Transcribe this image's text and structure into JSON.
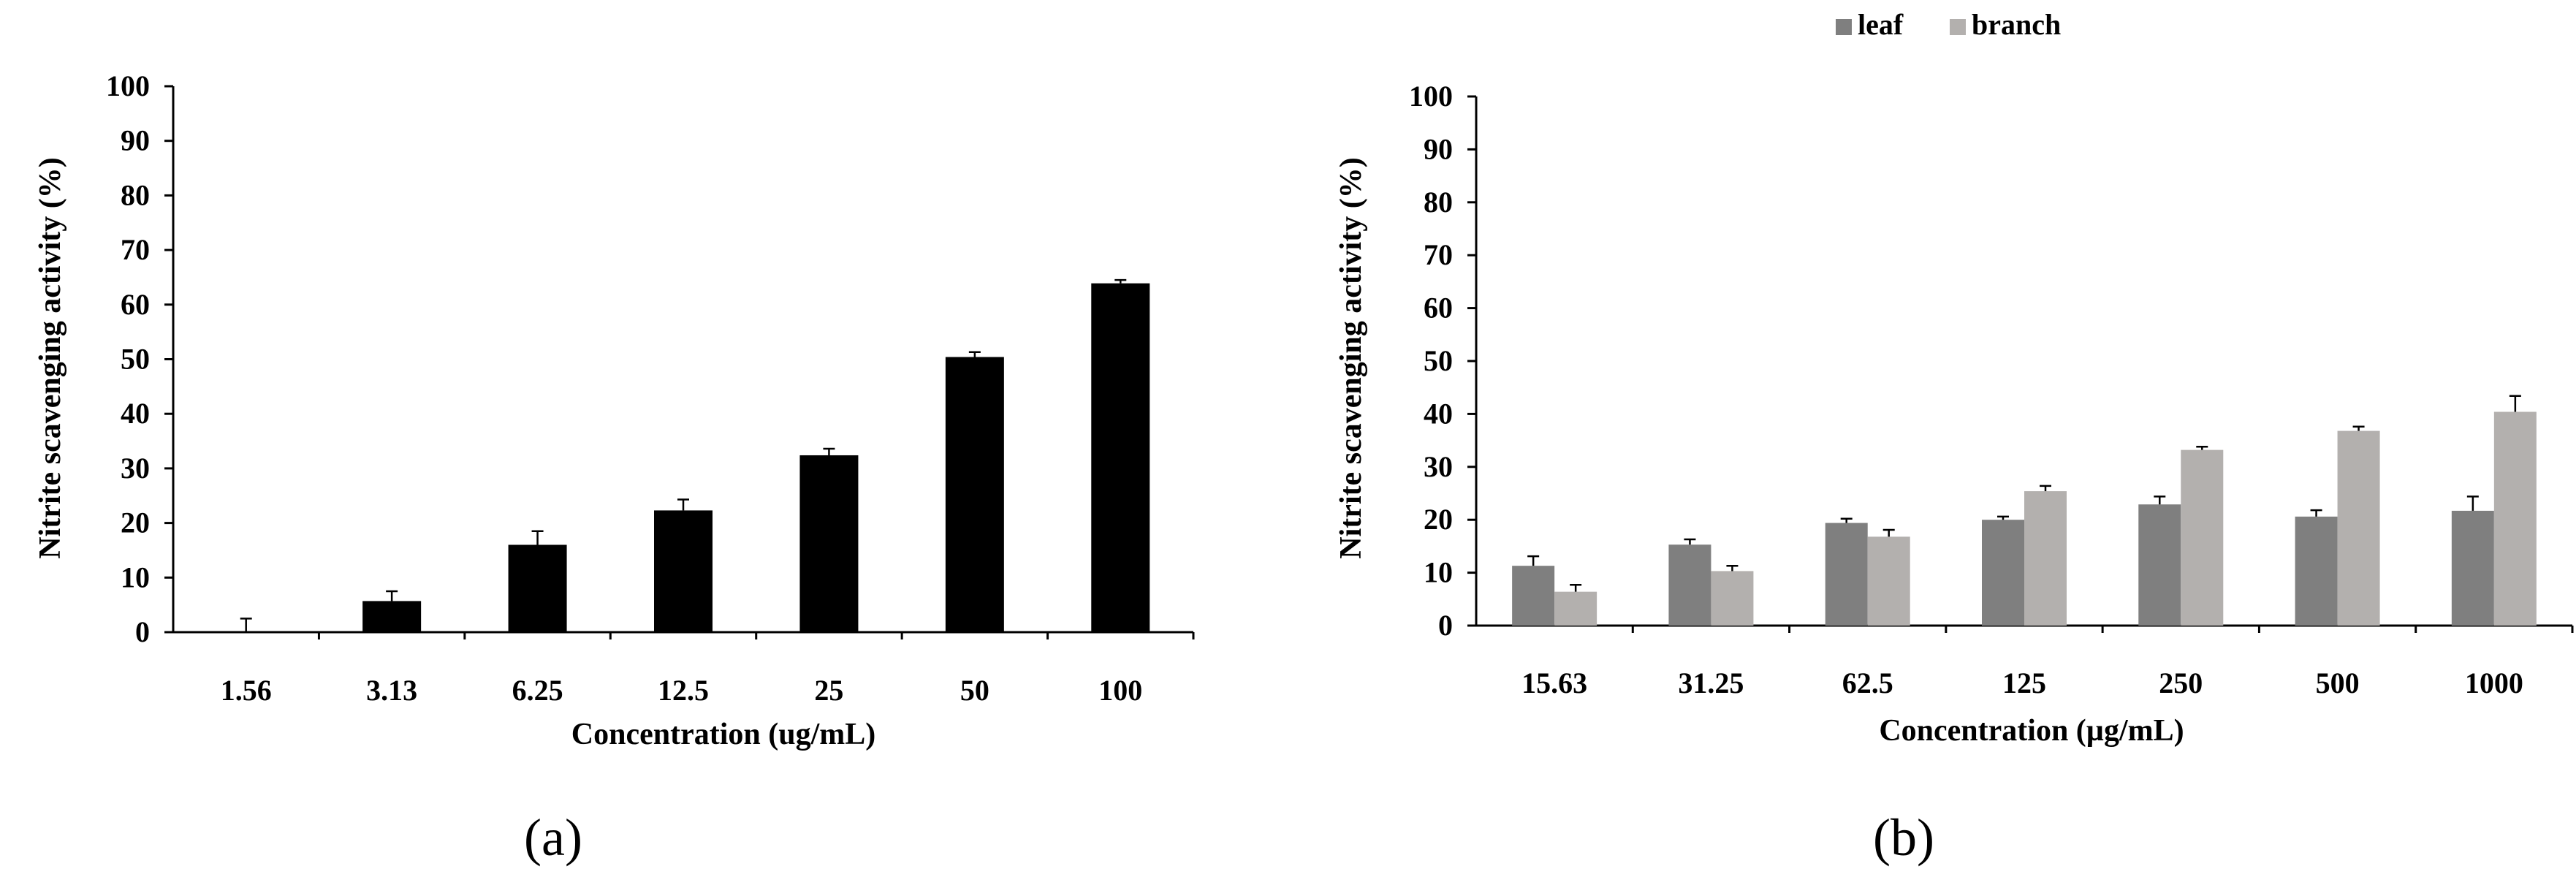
{
  "chart_data": [
    {
      "type": "bar",
      "panel_label": "(a)",
      "title": "",
      "xlabel": "Concentration (ug/mL)",
      "ylabel": "Nitrite scavenging activity (%)",
      "ylim": [
        0,
        100
      ],
      "yticks": [
        "0",
        "10",
        "20",
        "30",
        "40",
        "50",
        "60",
        "70",
        "80",
        "90",
        "100"
      ],
      "grid": false,
      "categories": [
        "1.56",
        "3.13",
        "6.25",
        "12.5",
        "25",
        "50",
        "100"
      ],
      "series": [
        {
          "color": "#000000",
          "values": [
            0,
            5.7,
            16.0,
            22.3,
            32.4,
            50.4,
            63.9
          ],
          "errors": [
            2.5,
            1.8,
            2.5,
            2.0,
            1.2,
            0.9,
            0.6
          ]
        }
      ]
    },
    {
      "type": "bar",
      "panel_label": "(b)",
      "title": "",
      "xlabel": "Concentration (µg/mL)",
      "ylabel": "Nitrite scavenging activity (%)",
      "ylim": [
        0,
        100
      ],
      "yticks": [
        "0",
        "10",
        "20",
        "30",
        "40",
        "50",
        "60",
        "70",
        "80",
        "90",
        "100"
      ],
      "grid": false,
      "legend_position": "top",
      "categories": [
        "15.63",
        "31.25",
        "62.5",
        "125",
        "250",
        "500",
        "1000"
      ],
      "series": [
        {
          "name": "leaf",
          "color": "#7f7f7f",
          "values": [
            11.3,
            15.3,
            19.4,
            20.0,
            22.9,
            20.6,
            21.7
          ],
          "errors": [
            1.8,
            1.0,
            0.8,
            0.6,
            1.5,
            1.2,
            2.7
          ]
        },
        {
          "name": "branch",
          "color": "#b3b0ae",
          "values": [
            6.4,
            10.3,
            16.8,
            25.4,
            33.2,
            36.8,
            40.4
          ],
          "errors": [
            1.3,
            1.0,
            1.3,
            1.0,
            0.6,
            0.8,
            3.0
          ]
        }
      ]
    }
  ]
}
